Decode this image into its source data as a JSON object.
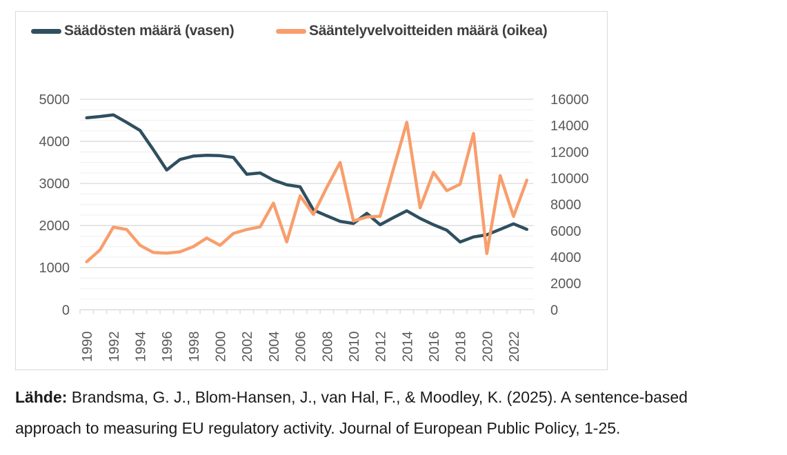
{
  "colors": {
    "series_left": "#2F4F5F",
    "series_right": "#F89E6C",
    "grid_major": "#D9D9D9",
    "grid_minor": "#EFEFEF",
    "axis_line": "#D9D9D9",
    "axis_label": "#595959",
    "legend_text": "#3F3F3F",
    "frame_border": "#D9D9D9"
  },
  "caption": {
    "source_label": "Lähde:",
    "line1_rest": " Brandsma, G. J., Blom-Hansen, J., van Hal, F., & Moodley, K. (2025). A sentence-based",
    "line2": "approach to measuring EU regulatory activity. Journal of European Public Policy, 1-25."
  },
  "chart_data": {
    "type": "line",
    "title": "",
    "xlabel": "",
    "ylabel_left": "",
    "ylabel_right": "",
    "x": [
      1990,
      1991,
      1992,
      1993,
      1994,
      1995,
      1996,
      1997,
      1998,
      1999,
      2000,
      2001,
      2002,
      2003,
      2004,
      2005,
      2006,
      2007,
      2008,
      2009,
      2010,
      2011,
      2012,
      2013,
      2014,
      2015,
      2016,
      2017,
      2018,
      2019,
      2020,
      2021,
      2022,
      2023
    ],
    "x_tick_labels": [
      "1990",
      "1992",
      "1994",
      "1996",
      "1998",
      "2000",
      "2002",
      "2004",
      "2006",
      "2008",
      "2010",
      "2012",
      "2014",
      "2016",
      "2018",
      "2020",
      "2022"
    ],
    "series": [
      {
        "name": "Säädösten määrä (vasen)",
        "axis": "left",
        "color": "#2F4F5F",
        "values": [
          4560,
          4590,
          4630,
          4450,
          4260,
          3800,
          3320,
          3570,
          3650,
          3670,
          3660,
          3620,
          3220,
          3250,
          3080,
          2970,
          2920,
          2370,
          2230,
          2100,
          2050,
          2290,
          2020,
          2190,
          2350,
          2170,
          2020,
          1890,
          1610,
          1730,
          1780,
          1910,
          2040,
          1910
        ]
      },
      {
        "name": "Sääntelyvelvoitteiden määrä (oikea)",
        "axis": "right",
        "color": "#F89E6C",
        "values": [
          3650,
          4550,
          6280,
          6100,
          4900,
          4350,
          4300,
          4400,
          4800,
          5450,
          4900,
          5800,
          6100,
          6300,
          8100,
          5150,
          8650,
          7250,
          9300,
          11200,
          6750,
          7050,
          7100,
          10700,
          14250,
          7750,
          10450,
          9050,
          9550,
          13400,
          4270,
          10200,
          7100,
          9850
        ]
      }
    ],
    "left_axis": {
      "min": 0,
      "max": 5000,
      "tick_step": 1000,
      "tick_labels": [
        "0",
        "1000",
        "2000",
        "3000",
        "4000",
        "5000"
      ]
    },
    "right_axis": {
      "min": 0,
      "max": 16000,
      "tick_step": 2000,
      "tick_labels": [
        "0",
        "2000",
        "4000",
        "6000",
        "8000",
        "10000",
        "12000",
        "14000",
        "16000"
      ]
    },
    "grid": {
      "major": true,
      "minor": true,
      "minor_divisions_per_major": 4
    },
    "legend_position": "top"
  }
}
